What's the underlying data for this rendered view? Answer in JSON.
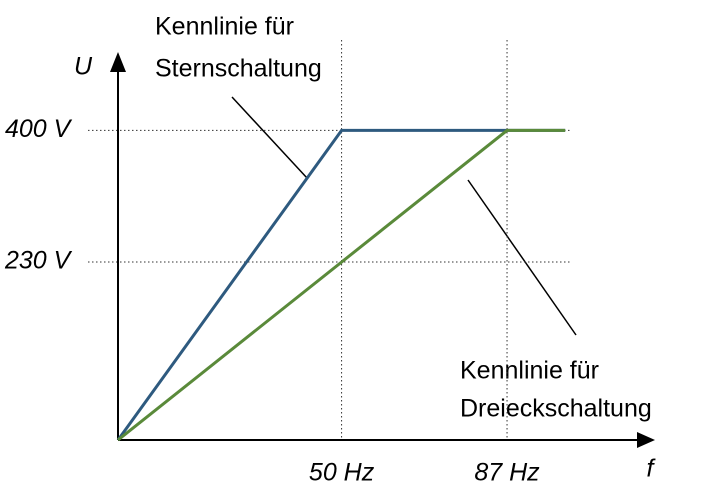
{
  "chart_data": {
    "type": "line",
    "x_label": "f",
    "y_label": "U",
    "series": [
      {
        "color": "#2e5a7f",
        "x": [
          0,
          50,
          100
        ],
        "values": [
          0,
          400,
          400
        ]
      },
      {
        "color": "#5a8a3a",
        "x": [
          0,
          87,
          100
        ],
        "values": [
          0,
          400,
          400
        ]
      }
    ],
    "xlim": [
      0,
      120
    ],
    "ylim": [
      0,
      500
    ],
    "xticks": [
      {
        "value": 50,
        "label": "50 Hz"
      },
      {
        "value": 87,
        "label": "87 Hz"
      }
    ],
    "yticks": [
      {
        "value": 230,
        "label": "230 V"
      },
      {
        "value": 400,
        "label": "400 V"
      }
    ],
    "grid": true,
    "annotations": [
      [
        "Kennlinie für",
        "Sternschaltung"
      ],
      [
        "Kennlinie für",
        "Dreieckschaltung"
      ]
    ]
  }
}
